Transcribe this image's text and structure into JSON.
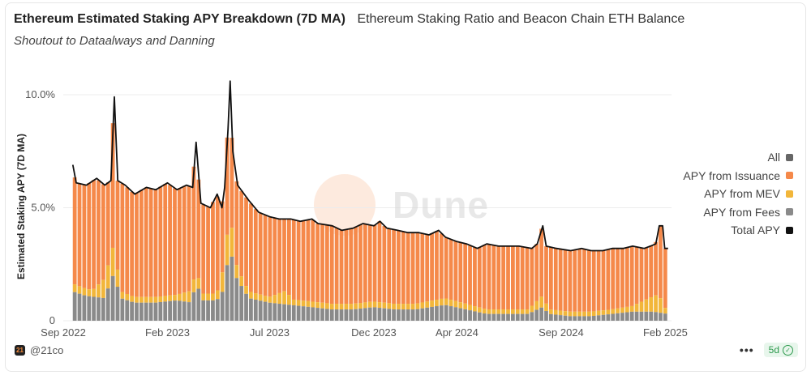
{
  "header": {
    "title": "Ethereum Estimated Staking APY Breakdown (7D MA)",
    "tab2": "Ethereum Staking Ratio and Beacon Chain ETH Balance",
    "subtitle": "Shoutout to Dataalways and Danning"
  },
  "watermark": "Dune",
  "footer": {
    "author": "@21co",
    "avatar_text": "21",
    "menu": "•••",
    "age": "5d",
    "age_icon": "check-circle-icon"
  },
  "colors": {
    "issuance": "#f5894a",
    "mev": "#f2b63a",
    "fees": "#8a8a8a",
    "total": "#111111",
    "all": "#666666"
  },
  "chart_data": {
    "type": "area",
    "title": "Ethereum Estimated Staking APY Breakdown (7D MA)",
    "ylabel": "Estimated Staking APY (7D MA)",
    "ylim": [
      0,
      10.5
    ],
    "yticks": [
      {
        "value": 0,
        "label": "0"
      },
      {
        "value": 5,
        "label": "5.0%"
      },
      {
        "value": 10,
        "label": "10.0%"
      }
    ],
    "xlim": [
      "2022-09-01",
      "2025-02-10"
    ],
    "xticks": [
      {
        "date": "2022-09-01",
        "label": "Sep 2022"
      },
      {
        "date": "2023-02-01",
        "label": "Feb 2023"
      },
      {
        "date": "2023-07-01",
        "label": "Jul 2023"
      },
      {
        "date": "2023-12-01",
        "label": "Dec 2023"
      },
      {
        "date": "2024-04-01",
        "label": "Apr 2024"
      },
      {
        "date": "2024-09-01",
        "label": "Sep 2024"
      },
      {
        "date": "2025-02-01",
        "label": "Feb 2025"
      }
    ],
    "grid": true,
    "legend_position": "right",
    "legend": [
      "All",
      "APY from Issuance",
      "APY from MEV",
      "APY from Fees",
      "Total APY"
    ],
    "series": [
      {
        "name": "Total APY",
        "points": [
          [
            "2022-09-15",
            6.9
          ],
          [
            "2022-09-20",
            6.1
          ],
          [
            "2022-10-05",
            6.0
          ],
          [
            "2022-10-20",
            6.3
          ],
          [
            "2022-11-01",
            6.0
          ],
          [
            "2022-11-10",
            6.2
          ],
          [
            "2022-11-15",
            9.9
          ],
          [
            "2022-11-20",
            6.2
          ],
          [
            "2022-12-01",
            6.0
          ],
          [
            "2022-12-15",
            5.6
          ],
          [
            "2023-01-01",
            5.9
          ],
          [
            "2023-01-15",
            5.8
          ],
          [
            "2023-02-01",
            6.1
          ],
          [
            "2023-02-15",
            5.8
          ],
          [
            "2023-03-01",
            6.0
          ],
          [
            "2023-03-10",
            5.9
          ],
          [
            "2023-03-15",
            7.9
          ],
          [
            "2023-03-22",
            5.2
          ],
          [
            "2023-04-05",
            5.0
          ],
          [
            "2023-04-15",
            5.6
          ],
          [
            "2023-04-22",
            5.0
          ],
          [
            "2023-04-26",
            5.9
          ],
          [
            "2023-05-01",
            8.5
          ],
          [
            "2023-05-04",
            10.6
          ],
          [
            "2023-05-08",
            7.5
          ],
          [
            "2023-05-15",
            6.0
          ],
          [
            "2023-06-01",
            5.3
          ],
          [
            "2023-06-15",
            4.8
          ],
          [
            "2023-07-01",
            4.6
          ],
          [
            "2023-07-15",
            4.5
          ],
          [
            "2023-08-01",
            4.5
          ],
          [
            "2023-08-15",
            4.4
          ],
          [
            "2023-09-01",
            4.5
          ],
          [
            "2023-09-10",
            4.3
          ],
          [
            "2023-10-01",
            4.2
          ],
          [
            "2023-10-15",
            4.0
          ],
          [
            "2023-11-01",
            4.1
          ],
          [
            "2023-11-15",
            4.3
          ],
          [
            "2023-12-01",
            4.2
          ],
          [
            "2023-12-10",
            4.4
          ],
          [
            "2023-12-20",
            4.1
          ],
          [
            "2024-01-05",
            4.0
          ],
          [
            "2024-01-20",
            3.9
          ],
          [
            "2024-02-05",
            3.9
          ],
          [
            "2024-02-20",
            3.8
          ],
          [
            "2024-03-05",
            4.0
          ],
          [
            "2024-03-15",
            3.7
          ],
          [
            "2024-04-01",
            3.5
          ],
          [
            "2024-04-15",
            3.4
          ],
          [
            "2024-05-01",
            3.2
          ],
          [
            "2024-05-15",
            3.4
          ],
          [
            "2024-06-01",
            3.3
          ],
          [
            "2024-06-15",
            3.3
          ],
          [
            "2024-07-01",
            3.3
          ],
          [
            "2024-07-20",
            3.2
          ],
          [
            "2024-07-28",
            3.4
          ],
          [
            "2024-08-05",
            4.2
          ],
          [
            "2024-08-10",
            3.3
          ],
          [
            "2024-08-25",
            3.2
          ],
          [
            "2024-09-15",
            3.1
          ],
          [
            "2024-10-01",
            3.2
          ],
          [
            "2024-10-15",
            3.1
          ],
          [
            "2024-11-01",
            3.1
          ],
          [
            "2024-11-15",
            3.2
          ],
          [
            "2024-12-01",
            3.2
          ],
          [
            "2024-12-15",
            3.3
          ],
          [
            "2025-01-01",
            3.2
          ],
          [
            "2025-01-10",
            3.3
          ],
          [
            "2025-01-18",
            3.4
          ],
          [
            "2025-01-23",
            4.2
          ],
          [
            "2025-01-28",
            4.2
          ],
          [
            "2025-01-31",
            3.2
          ],
          [
            "2025-02-05",
            3.2
          ]
        ]
      },
      {
        "name": "APY from Fees",
        "points": [
          [
            "2022-09-15",
            1.3
          ],
          [
            "2022-10-05",
            1.1
          ],
          [
            "2022-11-01",
            1.0
          ],
          [
            "2022-11-15",
            2.1
          ],
          [
            "2022-11-25",
            1.0
          ],
          [
            "2022-12-15",
            0.8
          ],
          [
            "2023-01-15",
            0.8
          ],
          [
            "2023-02-15",
            0.9
          ],
          [
            "2023-03-10",
            0.8
          ],
          [
            "2023-03-15",
            1.8
          ],
          [
            "2023-03-25",
            0.9
          ],
          [
            "2023-04-15",
            0.9
          ],
          [
            "2023-04-26",
            1.4
          ],
          [
            "2023-05-04",
            3.4
          ],
          [
            "2023-05-12",
            2.0
          ],
          [
            "2023-06-01",
            1.0
          ],
          [
            "2023-07-01",
            0.8
          ],
          [
            "2023-08-01",
            0.7
          ],
          [
            "2023-09-01",
            0.6
          ],
          [
            "2023-10-01",
            0.5
          ],
          [
            "2023-11-01",
            0.5
          ],
          [
            "2023-12-01",
            0.6
          ],
          [
            "2024-01-01",
            0.5
          ],
          [
            "2024-02-01",
            0.5
          ],
          [
            "2024-03-15",
            0.7
          ],
          [
            "2024-04-15",
            0.5
          ],
          [
            "2024-05-15",
            0.3
          ],
          [
            "2024-06-15",
            0.3
          ],
          [
            "2024-07-15",
            0.3
          ],
          [
            "2024-08-05",
            0.6
          ],
          [
            "2024-08-15",
            0.3
          ],
          [
            "2024-09-15",
            0.2
          ],
          [
            "2024-10-15",
            0.2
          ],
          [
            "2024-11-15",
            0.3
          ],
          [
            "2024-12-15",
            0.4
          ],
          [
            "2025-01-15",
            0.4
          ],
          [
            "2025-02-05",
            0.3
          ]
        ]
      },
      {
        "name": "APY from MEV",
        "points": [
          [
            "2022-09-15",
            0.35
          ],
          [
            "2022-10-15",
            0.3
          ],
          [
            "2022-11-15",
            1.3
          ],
          [
            "2022-11-25",
            0.3
          ],
          [
            "2022-12-15",
            0.25
          ],
          [
            "2023-01-15",
            0.25
          ],
          [
            "2023-02-15",
            0.25
          ],
          [
            "2023-03-15",
            0.6
          ],
          [
            "2023-03-25",
            0.3
          ],
          [
            "2023-04-15",
            0.3
          ],
          [
            "2023-05-04",
            1.6
          ],
          [
            "2023-05-15",
            0.5
          ],
          [
            "2023-06-01",
            0.3
          ],
          [
            "2023-07-01",
            0.25
          ],
          [
            "2023-07-25",
            0.6
          ],
          [
            "2023-08-05",
            0.25
          ],
          [
            "2023-09-01",
            0.25
          ],
          [
            "2023-10-01",
            0.25
          ],
          [
            "2023-11-01",
            0.25
          ],
          [
            "2023-12-01",
            0.25
          ],
          [
            "2024-01-01",
            0.25
          ],
          [
            "2024-02-01",
            0.25
          ],
          [
            "2024-03-15",
            0.3
          ],
          [
            "2024-04-15",
            0.25
          ],
          [
            "2024-05-15",
            0.2
          ],
          [
            "2024-06-15",
            0.2
          ],
          [
            "2024-07-15",
            0.2
          ],
          [
            "2024-08-05",
            0.5
          ],
          [
            "2024-08-15",
            0.2
          ],
          [
            "2024-09-15",
            0.2
          ],
          [
            "2024-10-15",
            0.2
          ],
          [
            "2024-11-15",
            0.2
          ],
          [
            "2024-12-15",
            0.25
          ],
          [
            "2025-01-23",
            0.8
          ],
          [
            "2025-02-01",
            0.25
          ],
          [
            "2025-02-05",
            0.25
          ]
        ]
      }
    ]
  }
}
